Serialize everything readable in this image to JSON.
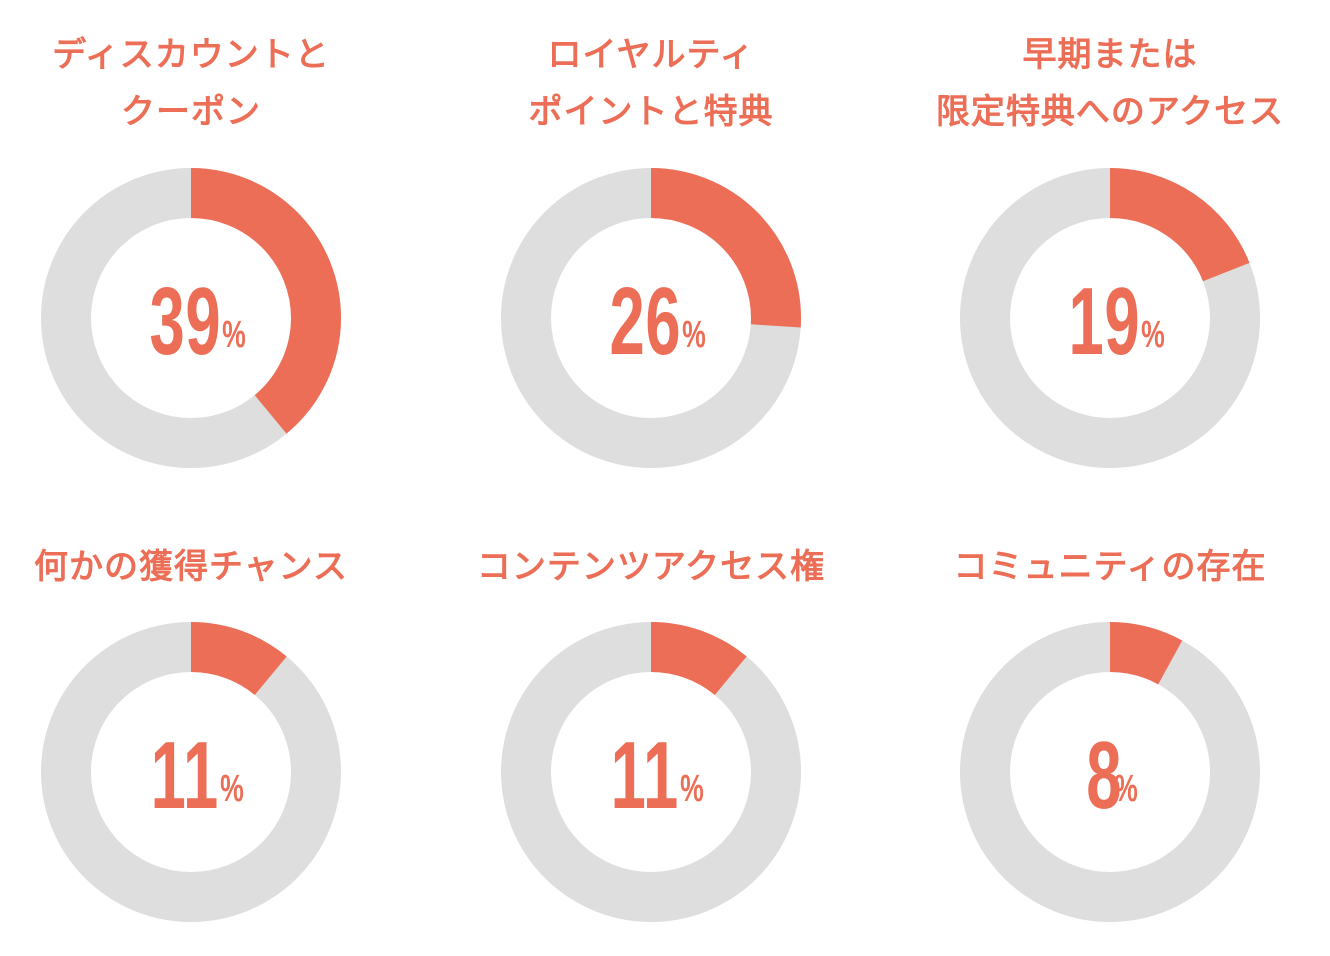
{
  "colors": {
    "accent": "#EC6E56",
    "track": "#DEDEDE"
  },
  "chart_data": {
    "type": "pie",
    "unit": "%",
    "items": [
      {
        "label": "ディスカウントと\nクーポン",
        "value": 39
      },
      {
        "label": "ロイヤルティ\nポイントと特典",
        "value": 26
      },
      {
        "label": "早期または\n限定特典へのアクセス",
        "value": 19
      },
      {
        "label": "何かの獲得チャンス",
        "value": 11
      },
      {
        "label": "コンテンツアクセス権",
        "value": 11
      },
      {
        "label": "コミュニティの存在",
        "value": 8
      }
    ]
  }
}
